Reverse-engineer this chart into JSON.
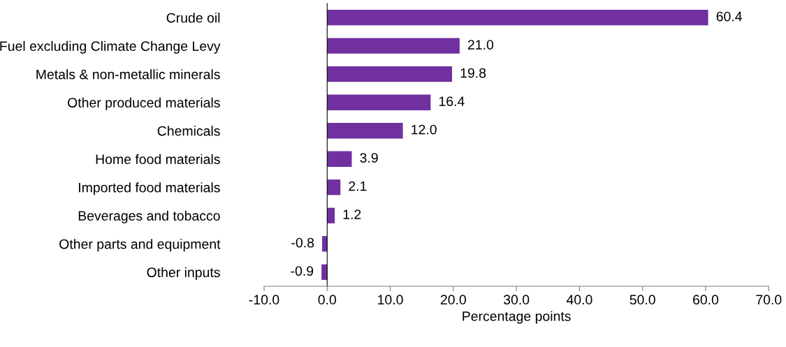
{
  "chart_data": {
    "type": "bar",
    "orientation": "horizontal",
    "xlabel": "Percentage points",
    "categories": [
      "Crude oil",
      "Fuel excluding Climate Change Levy",
      "Metals & non-metallic minerals",
      "Other produced materials",
      "Chemicals",
      "Home food materials",
      "Imported food materials",
      "Beverages and tobacco",
      "Other parts and equipment",
      "Other inputs"
    ],
    "values": [
      60.4,
      21.0,
      19.8,
      16.4,
      12.0,
      3.9,
      2.1,
      1.2,
      -0.8,
      -0.9
    ],
    "value_labels": [
      "60.4",
      "21.0",
      "19.8",
      "16.4",
      "12.0",
      "3.9",
      "2.1",
      "1.2",
      "-0.8",
      "-0.9"
    ],
    "color": "#7030a0",
    "xlim": [
      -10,
      70
    ],
    "xticks": [
      {
        "value": -10,
        "label": "-10.0"
      },
      {
        "value": 0,
        "label": "0.0"
      },
      {
        "value": 10,
        "label": "10.0"
      },
      {
        "value": 20,
        "label": "20.0"
      },
      {
        "value": 30,
        "label": "30.0"
      },
      {
        "value": 40,
        "label": "40.0"
      },
      {
        "value": 50,
        "label": "50.0"
      },
      {
        "value": 60,
        "label": "60.0"
      },
      {
        "value": 70,
        "label": "70.0"
      }
    ],
    "legend": false
  }
}
